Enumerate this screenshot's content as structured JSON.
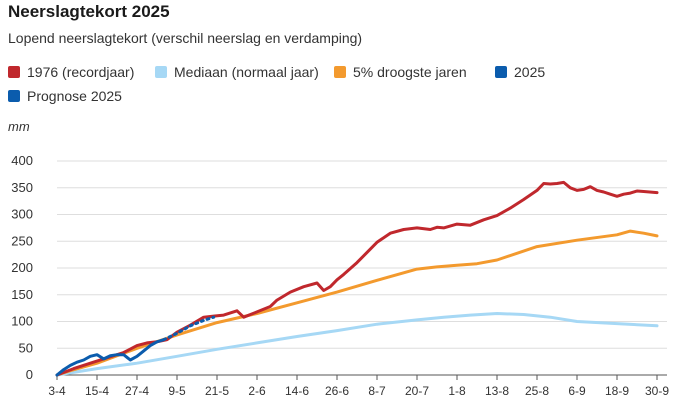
{
  "header": {
    "title": "Neerslagtekort 2025",
    "subtitle": "Lopend neerslagtekort (verschil neerslag en verdamping)"
  },
  "legend": {
    "items": [
      {
        "label": "1976 (recordjaar)",
        "color": "#c0282d"
      },
      {
        "label": "Mediaan (normaal jaar)",
        "color": "#a6d8f5"
      },
      {
        "label": "5% droogste jaren",
        "color": "#f39a2e"
      },
      {
        "label": "2025",
        "color": "#0b5cad"
      },
      {
        "label": "Prognose 2025",
        "color": "#0b5cad"
      }
    ]
  },
  "chart_data": {
    "type": "line",
    "title": "Neerslagtekort 2025",
    "ylabel": "mm",
    "xlabel": "",
    "ylim": [
      0,
      400
    ],
    "yticks": [
      "0",
      "50",
      "100",
      "150",
      "200",
      "250",
      "300",
      "350",
      "400"
    ],
    "xlim": [
      0,
      180
    ],
    "xticks": [
      {
        "day": 0,
        "label": "3-4"
      },
      {
        "day": 12,
        "label": "15-4"
      },
      {
        "day": 24,
        "label": "27-4"
      },
      {
        "day": 36,
        "label": "9-5"
      },
      {
        "day": 48,
        "label": "21-5"
      },
      {
        "day": 60,
        "label": "2-6"
      },
      {
        "day": 72,
        "label": "14-6"
      },
      {
        "day": 84,
        "label": "26-6"
      },
      {
        "day": 96,
        "label": "8-7"
      },
      {
        "day": 108,
        "label": "20-7"
      },
      {
        "day": 120,
        "label": "1-8"
      },
      {
        "day": 132,
        "label": "13-8"
      },
      {
        "day": 144,
        "label": "25-8"
      },
      {
        "day": 156,
        "label": "6-9"
      },
      {
        "day": 168,
        "label": "18-9"
      },
      {
        "day": 180,
        "label": "30-9"
      }
    ],
    "grid": true,
    "series": [
      {
        "name": "Mediaan (normaal jaar)",
        "color": "#a6d8f5",
        "x": [
          0,
          12,
          24,
          36,
          48,
          60,
          72,
          84,
          96,
          108,
          116,
          124,
          132,
          140,
          148,
          156,
          168,
          180
        ],
        "y": [
          0,
          12,
          22,
          35,
          48,
          60,
          72,
          83,
          95,
          103,
          108,
          112,
          115,
          113,
          108,
          100,
          96,
          92
        ]
      },
      {
        "name": "5% droogste jaren",
        "color": "#f39a2e",
        "x": [
          0,
          4,
          12,
          24,
          36,
          48,
          60,
          72,
          84,
          96,
          108,
          114,
          120,
          126,
          132,
          144,
          156,
          168,
          172,
          176,
          180
        ],
        "y": [
          0,
          8,
          22,
          50,
          75,
          98,
          115,
          135,
          155,
          177,
          198,
          202,
          205,
          208,
          215,
          240,
          252,
          262,
          269,
          265,
          260
        ]
      },
      {
        "name": "1976 (recordjaar)",
        "color": "#c0282d",
        "x": [
          0,
          5,
          10,
          16,
          20,
          24,
          27,
          30,
          33,
          36,
          40,
          44,
          47,
          50,
          54,
          56,
          60,
          64,
          66,
          70,
          74,
          78,
          80,
          82,
          84,
          86,
          90,
          96,
          100,
          104,
          108,
          112,
          114,
          116,
          120,
          124,
          128,
          132,
          136,
          140,
          144,
          146,
          148,
          150,
          152,
          154,
          156,
          158,
          160,
          162,
          164,
          166,
          168,
          170,
          172,
          174,
          176,
          180
        ],
        "y": [
          0,
          12,
          22,
          34,
          42,
          55,
          60,
          62,
          66,
          80,
          93,
          108,
          110,
          112,
          120,
          108,
          118,
          128,
          140,
          155,
          165,
          172,
          158,
          165,
          178,
          188,
          210,
          248,
          265,
          272,
          275,
          272,
          276,
          275,
          282,
          280,
          290,
          298,
          312,
          328,
          345,
          358,
          357,
          358,
          360,
          350,
          345,
          347,
          352,
          345,
          342,
          338,
          334,
          338,
          340,
          344,
          343,
          341
        ]
      },
      {
        "name": "2025",
        "color": "#0b5cad",
        "x": [
          0,
          2,
          4,
          6,
          8,
          10,
          12,
          14,
          16,
          18,
          20,
          22,
          24,
          26,
          28,
          30,
          32
        ],
        "y": [
          0,
          10,
          18,
          24,
          28,
          35,
          38,
          30,
          36,
          38,
          38,
          28,
          35,
          45,
          55,
          62,
          66
        ]
      },
      {
        "name": "Prognose 2025",
        "color": "#0b5cad",
        "dashed": true,
        "x": [
          32,
          36,
          40,
          44,
          47
        ],
        "y": [
          66,
          78,
          92,
          102,
          108
        ]
      }
    ]
  }
}
